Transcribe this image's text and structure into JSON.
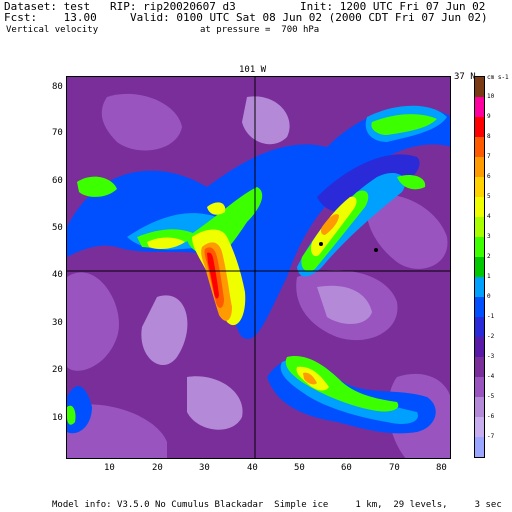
{
  "header": {
    "dataset": "Dataset: test   RIP: rip20020607 d3",
    "init": "Init: 1200 UTC Fri 07 Jun 02",
    "fcst": "Fcst:    13.00",
    "valid": "Valid: 0100 UTC Sat 08 Jun 02 (2000 CDT Fri 07 Jun 02)",
    "field": "Vertical velocity",
    "pressure": "at pressure =  700 hPa"
  },
  "plot": {
    "top_label": "101 W",
    "right_label": "37 N",
    "xticks": [
      "10",
      "20",
      "30",
      "40",
      "50",
      "60",
      "70",
      "80"
    ],
    "yticks": [
      "80",
      "70",
      "60",
      "50",
      "40",
      "30",
      "20",
      "10"
    ]
  },
  "colorbar": {
    "units": "cm s-1",
    "labels": [
      "10",
      "9",
      "8",
      "7",
      "6",
      "5",
      "4",
      "3",
      "2",
      "1",
      "0",
      "-1",
      "-2",
      "-3",
      "-4",
      "-5",
      "-6",
      "-7"
    ],
    "colors": [
      "#7a3a14",
      "#ff00a0",
      "#ff0000",
      "#ff5a00",
      "#ff9a00",
      "#ffd200",
      "#f0ff00",
      "#a8ff00",
      "#3cff00",
      "#00c800",
      "#00a0ff",
      "#0050ff",
      "#2a2ad8",
      "#5a1aa8",
      "#7a2e9a",
      "#9a54c0",
      "#b48ad8",
      "#c8aeee",
      "#9aa6ff"
    ]
  },
  "footer": "Model info: V3.5.0 No Cumulus Blackadar  Simple ice     1 km,  29 levels,     3 sec"
}
